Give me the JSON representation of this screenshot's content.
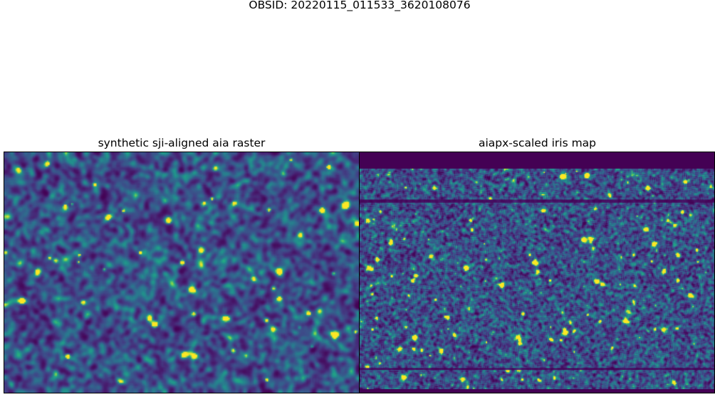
{
  "figure": {
    "suptitle": "OBSID: 20220115_011533_3620108076"
  },
  "panels": [
    {
      "title": "synthetic sji-aligned aia raster",
      "colormap": "viridis"
    },
    {
      "title": "aiapx-scaled iris map",
      "colormap": "viridis"
    }
  ],
  "colors": {
    "viridis_dark": "#440154",
    "viridis_mid": "#21918c",
    "viridis_bright": "#fde725"
  }
}
